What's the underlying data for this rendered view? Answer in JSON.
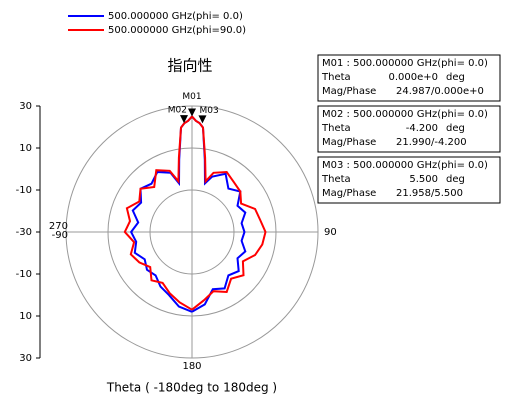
{
  "chart_data": {
    "type": "polar",
    "title": "指向性",
    "xlabel": "Theta ( -180deg to 180deg )",
    "x": [
      -180,
      -170,
      -160,
      -150,
      -140,
      -130,
      -120,
      -110,
      -100,
      -90,
      -80,
      -70,
      -60,
      -50,
      -40,
      -30,
      -20,
      -15,
      -10,
      -6,
      -4,
      -2,
      0,
      2,
      4,
      6,
      10,
      15,
      20,
      30,
      40,
      50,
      60,
      70,
      80,
      90,
      100,
      110,
      120,
      130,
      140,
      150,
      160,
      170,
      180
    ],
    "series": [
      {
        "name": "500.000000 GHz(phi= 0.0)",
        "color": "#0000ff",
        "values": [
          8,
          6,
          2,
          0,
          -3,
          -2,
          -4,
          -1,
          -3,
          -1,
          -4,
          0,
          -2,
          2,
          0,
          3,
          0,
          -6,
          5,
          20,
          22,
          23,
          25,
          23,
          22,
          20,
          5,
          -6,
          -2,
          2,
          -3,
          0,
          -5,
          -3,
          -6,
          -5,
          -6,
          -3,
          -5,
          -1,
          -3,
          1,
          -1,
          5,
          8
        ]
      },
      {
        "name": "500.000000 GHz(phi=90.0)",
        "color": "#ff0000",
        "values": [
          7,
          4,
          1,
          -2,
          0,
          -4,
          -1,
          1,
          -2,
          2,
          0,
          3,
          -1,
          2,
          -2,
          4,
          1,
          -5,
          6,
          20,
          22,
          23,
          25,
          23,
          22,
          20,
          6,
          -5,
          0,
          3,
          1,
          0,
          -3,
          2,
          3,
          5,
          4,
          2,
          -2,
          2,
          -1,
          3,
          0,
          3,
          7
        ]
      }
    ],
    "rlim": [
      -30,
      30
    ],
    "rticks": [
      -30,
      -10,
      10,
      30
    ],
    "thetaticks": [
      90,
      180,
      {
        "value": 270,
        "label": "270"
      },
      -90
    ],
    "grid": true,
    "markers": [
      {
        "name": "M01",
        "header": "M01 : 500.000000 GHz(phi= 0.0)",
        "theta_name": "Theta",
        "theta": 0,
        "theta_label": "0.000e+0",
        "unit": "deg",
        "mag_name": "Mag/Phase",
        "value": 24.987,
        "mag_phase": "24.987/0.000e+0"
      },
      {
        "name": "M02",
        "header": "M02 : 500.000000 GHz(phi= 0.0)",
        "theta_name": "Theta",
        "theta": -4.2,
        "theta_label": "-4.200",
        "unit": "deg",
        "mag_name": "Mag/Phase",
        "value": 21.99,
        "mag_phase": "21.990/-4.200"
      },
      {
        "name": "M03",
        "header": "M03 : 500.000000 GHz(phi= 0.0)",
        "theta_name": "Theta",
        "theta": 5.5,
        "theta_label": "5.500",
        "unit": "deg",
        "mag_name": "Mag/Phase",
        "value": 21.958,
        "mag_phase": "21.958/5.500"
      }
    ]
  }
}
